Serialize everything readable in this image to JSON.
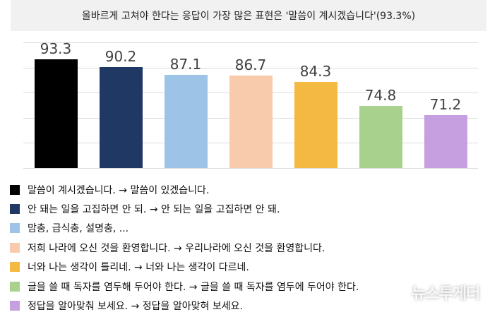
{
  "title": "올바르게 고쳐야 한다는 응답이 가장 많은 표현은 '말씀이 계시겠습니다'(93.3%)",
  "chart_data": {
    "type": "bar",
    "title": "올바르게 고쳐야 한다는 응답이 가장 많은 표현은 '말씀이 계시겠습니다'(93.3%)",
    "xlabel": "",
    "ylabel": "",
    "ylim": [
      50,
      100
    ],
    "grid": true,
    "legend_position": "bottom",
    "categories": [
      "말씀이 계시겠습니다. → 말씀이 있겠습니다.",
      "안 돼는 일을 고집하면 안 되. → 안 되는 일을 고집하면 안 돼.",
      "맘충, 급식충, 설명충, ...",
      "저희 나라에 오신 것을 환영합니다. → 우리나라에 오신 것을 환영합니다.",
      "너와 나는 생각이 틀리네. → 너와 나는 생각이 다르네.",
      "글을 쓸 때 독자를 염두해 두어야 한다. → 글을 쓸 때 독자를 염두에 두어야 한다.",
      "정답을 알아맞춰 보세요. → 정답을 알아맞혀 보세요."
    ],
    "values": [
      93.3,
      90.2,
      87.1,
      86.7,
      84.3,
      74.8,
      71.2
    ],
    "value_labels": [
      "93.3",
      "90.2",
      "87.1",
      "86.7",
      "84.3",
      "74.8",
      "71.2"
    ],
    "colors": [
      "#000000",
      "#1f3864",
      "#9dc3e6",
      "#f8cbad",
      "#f4b942",
      "#a9d18e",
      "#c59fe0"
    ]
  },
  "legend": [
    {
      "label": "말씀이 계시겠습니다. → 말씀이 있겠습니다.",
      "color": "#000000"
    },
    {
      "label": "안 돼는 일을 고집하면 안 되. → 안 되는 일을 고집하면 안 돼.",
      "color": "#1f3864"
    },
    {
      "label": "맘충, 급식충, 설명충, ...",
      "color": "#9dc3e6"
    },
    {
      "label": "저희 나라에 오신 것을 환영합니다. → 우리나라에 오신 것을 환영합니다.",
      "color": "#f8cbad"
    },
    {
      "label": "너와 나는 생각이 틀리네. → 너와 나는 생각이 다르네.",
      "color": "#f4b942"
    },
    {
      "label": "글을 쓸 때 독자를 염두해 두어야 한다. → 글을 쓸 때 독자를 염두에 두어야 한다.",
      "color": "#a9d18e"
    },
    {
      "label": "정답을 알아맞춰 보세요. → 정답을 알아맞혀 보세요.",
      "color": "#c59fe0"
    }
  ],
  "watermark": "뉴스투게더"
}
